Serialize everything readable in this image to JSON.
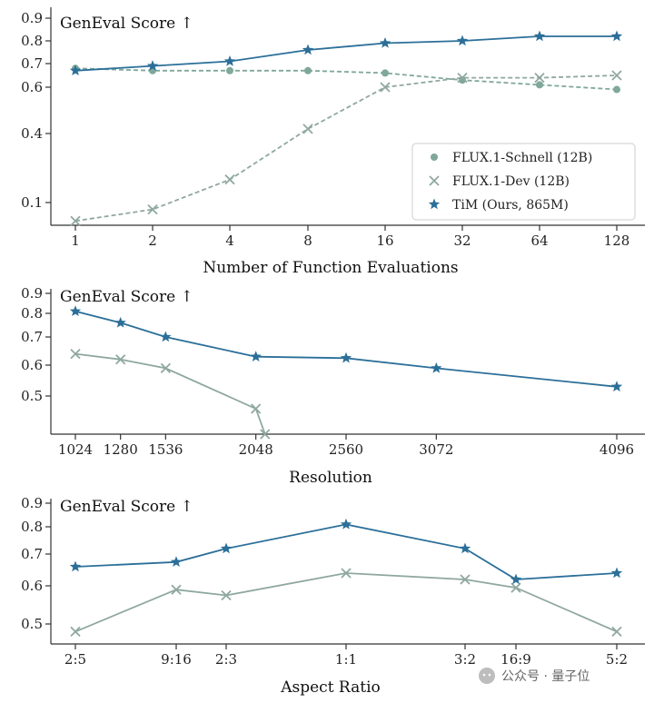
{
  "colors": {
    "tim": "#2b6f99",
    "flux_schnell": "#7fa89a",
    "flux_dev": "#8fa89e",
    "axis": "#333333"
  },
  "watermark": {
    "text": "公众号 · 量子位",
    "icon": "wechat-icon"
  },
  "chart_data": [
    {
      "type": "line",
      "title": "GenEval Score ↑",
      "xlabel": "Number of Function Evaluations",
      "ylabel": "",
      "categories": [
        "1",
        "2",
        "4",
        "8",
        "16",
        "32",
        "64",
        "128"
      ],
      "y_ticks": [
        "0.1",
        "0.4",
        "0.6",
        "0.7",
        "0.8",
        "0.9"
      ],
      "legend": "center-right",
      "series": [
        {
          "name": "FLUX.1-Schnell (12B)",
          "marker": "circle",
          "dashed": true,
          "values": [
            0.68,
            0.67,
            0.67,
            0.67,
            0.66,
            0.63,
            0.61,
            0.59
          ]
        },
        {
          "name": "FLUX.1-Dev (12B)",
          "marker": "x",
          "dashed": true,
          "values": [
            0.02,
            0.07,
            0.2,
            0.42,
            0.6,
            0.64,
            0.64,
            0.65
          ]
        },
        {
          "name": "TiM (Ours, 865M)",
          "marker": "star",
          "dashed": false,
          "values": [
            0.67,
            0.69,
            0.71,
            0.76,
            0.79,
            0.8,
            0.82,
            0.82
          ]
        }
      ]
    },
    {
      "type": "line",
      "title": "GenEval Score ↑",
      "xlabel": "Resolution",
      "ylabel": "",
      "x": [
        1024,
        1280,
        1536,
        2048,
        2560,
        3072,
        4096
      ],
      "y_ticks": [
        "0.5",
        "0.6",
        "0.7",
        "0.8",
        "0.9"
      ],
      "series": [
        {
          "name": "FLUX.1-Dev (12B)",
          "marker": "x",
          "dashed": false,
          "x": [
            1024,
            1280,
            1536,
            2048,
            2100
          ],
          "values": [
            0.64,
            0.62,
            0.59,
            0.46,
            0.38
          ]
        },
        {
          "name": "TiM (Ours, 865M)",
          "marker": "star",
          "dashed": false,
          "x": [
            1024,
            1280,
            1536,
            2048,
            2560,
            3072,
            4096
          ],
          "values": [
            0.81,
            0.76,
            0.7,
            0.63,
            0.625,
            0.59,
            0.53
          ]
        }
      ]
    },
    {
      "type": "line",
      "title": "GenEval Score ↑",
      "xlabel": "Aspect Ratio",
      "ylabel": "",
      "categories": [
        "2:5",
        "9:16",
        "2:3",
        "1:1",
        "3:2",
        "16:9",
        "5:2"
      ],
      "y_ticks": [
        "0.5",
        "0.6",
        "0.7",
        "0.8",
        "0.9"
      ],
      "series": [
        {
          "name": "FLUX.1-Dev (12B)",
          "marker": "x",
          "dashed": false,
          "values": [
            0.48,
            0.59,
            0.575,
            0.64,
            0.62,
            0.595,
            0.48
          ]
        },
        {
          "name": "TiM (Ours, 865M)",
          "marker": "star",
          "dashed": false,
          "values": [
            0.66,
            0.675,
            0.72,
            0.81,
            0.72,
            0.62,
            0.64
          ]
        }
      ]
    }
  ]
}
